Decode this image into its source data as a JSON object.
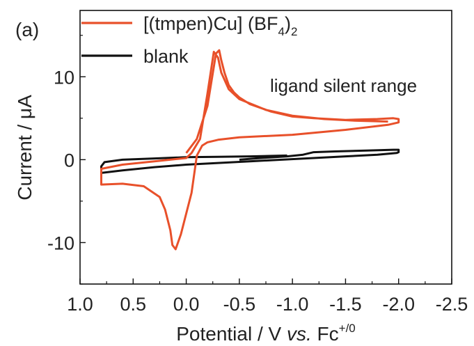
{
  "chart_data": {
    "type": "line",
    "panel_label": "(a)",
    "xlabel_parts": [
      "Potential / V ",
      "vs.",
      " Fc",
      "+/0"
    ],
    "ylabel_parts": [
      "Current / ",
      "μ",
      "A"
    ],
    "xlim": [
      1.0,
      -2.5
    ],
    "ylim": [
      -15,
      18
    ],
    "x_ticks": [
      "1.0",
      "0.5",
      "0.0",
      "-0.5",
      "-1.0",
      "-1.5",
      "-2.0",
      "-2.5"
    ],
    "x_tick_values": [
      1.0,
      0.5,
      0.0,
      -0.5,
      -1.0,
      -1.5,
      -2.0,
      -2.5
    ],
    "y_ticks": [
      "10",
      "0",
      "-10"
    ],
    "y_tick_values": [
      10,
      0,
      -10
    ],
    "annotation": "ligand silent range",
    "legend_position": "top-left",
    "series": [
      {
        "name_parts": [
          "[(tmpen)Cu] (BF",
          "4",
          ")",
          "2"
        ],
        "color": "#e8502a",
        "x": [
          -1.9,
          -1.6,
          -1.3,
          -1.0,
          -0.75,
          -0.5,
          -0.4,
          -0.33,
          -0.3,
          -0.26,
          -0.2,
          -0.13,
          -0.05,
          0.0,
          0.3,
          0.6,
          0.8,
          0.8,
          0.8,
          0.6,
          0.4,
          0.25,
          0.2,
          0.15,
          0.13,
          0.1,
          0.05,
          -0.05,
          -0.1,
          -0.15,
          -0.2,
          -0.3,
          -0.5,
          -1.0,
          -1.5,
          -1.9,
          -2.0,
          -2.0,
          -1.95,
          -1.8,
          -1.5,
          -1.2,
          -1.0,
          -0.8,
          -0.6,
          -0.5,
          -0.45,
          -0.4,
          -0.36,
          -0.33,
          -0.31,
          -0.28,
          -0.2,
          -0.1,
          0.0
        ],
        "y": [
          4.6,
          4.7,
          4.9,
          5.3,
          6.0,
          7.3,
          8.5,
          10.5,
          12.3,
          13.0,
          8.0,
          2.5,
          0.8,
          0.2,
          -0.2,
          -0.6,
          -1.1,
          -1.6,
          -3.0,
          -2.9,
          -3.2,
          -4.5,
          -6.0,
          -8.5,
          -10.3,
          -10.8,
          -9.0,
          -4.0,
          0.5,
          1.7,
          2.1,
          2.4,
          2.7,
          3.0,
          3.6,
          4.2,
          4.5,
          4.9,
          5.0,
          4.9,
          4.8,
          5.0,
          5.2,
          5.8,
          6.7,
          7.5,
          8.1,
          9.0,
          10.5,
          12.0,
          13.2,
          12.8,
          6.5,
          2.5,
          0.8
        ]
      },
      {
        "name_parts": [
          "blank"
        ],
        "color": "#111111",
        "x": [
          -0.95,
          -0.6,
          -0.3,
          0.0,
          0.3,
          0.6,
          0.77,
          0.8,
          0.8,
          0.6,
          0.3,
          0.0,
          -0.3,
          -0.6,
          -0.9,
          -1.2,
          -1.5,
          -1.8,
          -1.98,
          -2.0,
          -2.0,
          -1.95,
          -1.7,
          -1.4,
          -1.2,
          -1.1,
          -0.95,
          -0.7,
          -0.5
        ],
        "y": [
          0.5,
          0.4,
          0.35,
          0.3,
          0.15,
          0.0,
          -0.3,
          -0.8,
          -1.6,
          -1.3,
          -0.9,
          -0.6,
          -0.4,
          -0.2,
          0.0,
          0.2,
          0.4,
          0.6,
          0.8,
          0.9,
          1.2,
          1.2,
          1.1,
          1.0,
          0.9,
          0.6,
          0.4,
          0.2,
          0.0
        ]
      }
    ]
  }
}
